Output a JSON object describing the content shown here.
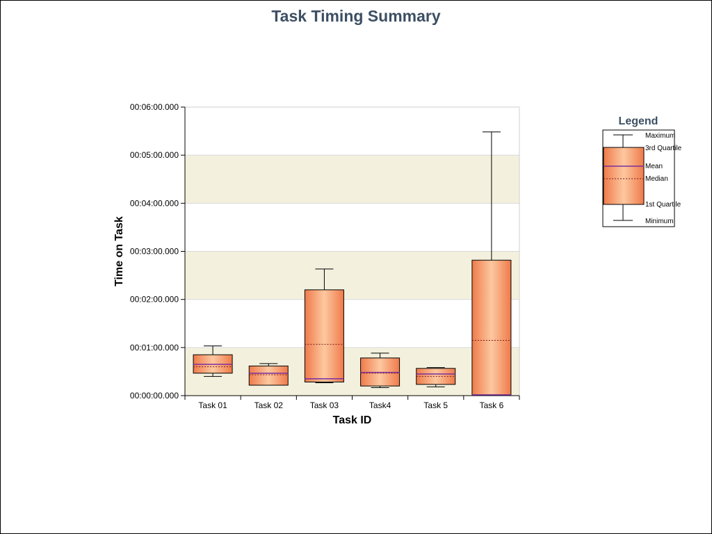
{
  "chart_data": {
    "type": "boxplot",
    "title": "Task Timing Summary",
    "xlabel": "Task ID",
    "ylabel": "Time on Task",
    "y_unit": "seconds",
    "ylim": [
      0,
      360
    ],
    "yticks": [
      {
        "value": 0,
        "label": "00:00:00.000"
      },
      {
        "value": 60,
        "label": "00:01:00.000"
      },
      {
        "value": 120,
        "label": "00:02:00.000"
      },
      {
        "value": 180,
        "label": "00:03:00.000"
      },
      {
        "value": 240,
        "label": "00:04:00.000"
      },
      {
        "value": 300,
        "label": "00:05:00.000"
      },
      {
        "value": 360,
        "label": "00:06:00.000"
      }
    ],
    "categories": [
      "Task 01",
      "Task 02",
      "Task 03",
      "Task4",
      "Task 5",
      "Task 6"
    ],
    "boxes": [
      {
        "min": 24,
        "q1": 28,
        "median": 36,
        "mean": 39,
        "q3": 51,
        "max": 62
      },
      {
        "min": 13,
        "q1": 13,
        "median": 26,
        "mean": 28,
        "q3": 37,
        "max": 40
      },
      {
        "min": 16,
        "q1": 17,
        "median": 64,
        "mean": 21,
        "q3": 132,
        "max": 158
      },
      {
        "min": 10,
        "q1": 12,
        "median": 28,
        "mean": 29,
        "q3": 47,
        "max": 53
      },
      {
        "min": 11,
        "q1": 14,
        "median": 24,
        "mean": 27,
        "q3": 34,
        "max": 35
      },
      {
        "min": 1,
        "q1": 1,
        "median": 69,
        "mean": 1,
        "q3": 169,
        "max": 329
      }
    ],
    "bands": "alternating beige every other minute",
    "colors": {
      "box_edge": "#ef7a4a",
      "box_center": "#fdc8a0",
      "band": "#f3f1de",
      "mean_line": "#7a2fa0",
      "median_line": "#7a1a1a",
      "grid": "#d8d8d8"
    },
    "legend": {
      "title": "Legend",
      "position": "right",
      "items": {
        "maximum": "Maximum",
        "q3": "3rd Quartile",
        "mean": "Mean",
        "median": "Median",
        "q1": "1st Quartile",
        "minimum": "Minimum"
      }
    }
  }
}
